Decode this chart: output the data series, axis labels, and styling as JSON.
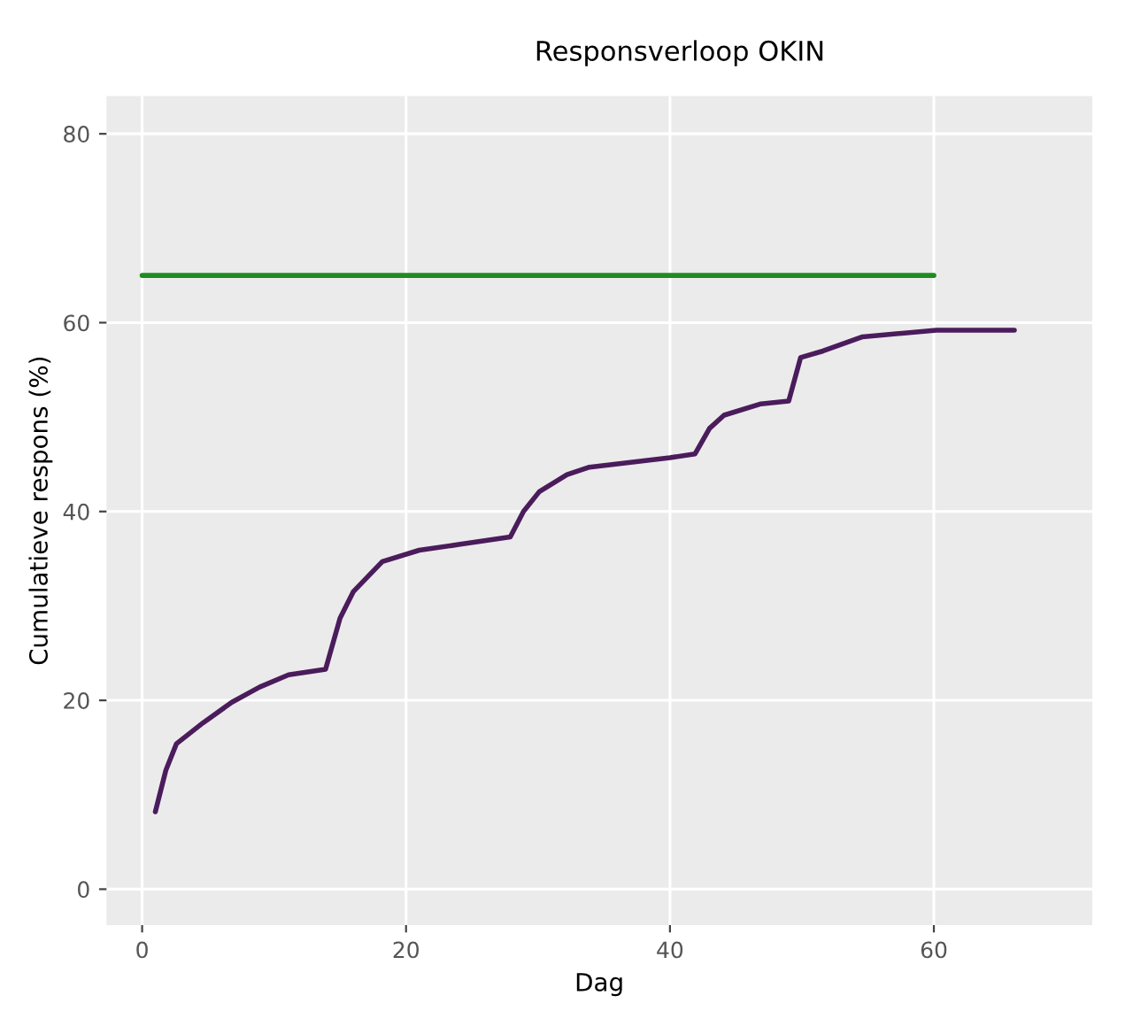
{
  "chart_data": {
    "type": "line",
    "title": "Responsverloop OKIN",
    "xlabel": "Dag",
    "ylabel": "Cumulatieve respons (%)",
    "xlim": [
      -2.7,
      72
    ],
    "ylim": [
      -3.8,
      84
    ],
    "xticks": [
      0,
      20,
      40,
      60
    ],
    "yticks": [
      0,
      20,
      40,
      60,
      80
    ],
    "grid": true,
    "legend": false,
    "series": [
      {
        "color": "#1e8c1e",
        "x": [
          0,
          60
        ],
        "values": [
          65,
          65
        ]
      },
      {
        "color": "#4b1c5c",
        "x": [
          1,
          1.8,
          2.6,
          4.6,
          6.8,
          8.9,
          11.1,
          13.9,
          15.0,
          16.0,
          18.2,
          21.0,
          24.0,
          27.9,
          28.9,
          30.1,
          32.2,
          33.9,
          40.0,
          41.9,
          43.0,
          44.1,
          46.9,
          49.0,
          49.9,
          51.6,
          54.6,
          60.2,
          66.1
        ],
        "values": [
          8.2,
          12.6,
          15.4,
          17.6,
          19.8,
          21.4,
          22.7,
          23.3,
          28.7,
          31.5,
          34.7,
          35.9,
          36.5,
          37.3,
          40.0,
          42.1,
          43.9,
          44.7,
          45.7,
          46.1,
          48.8,
          50.2,
          51.4,
          51.7,
          56.3,
          57.0,
          58.5,
          59.2,
          59.2
        ]
      }
    ]
  }
}
